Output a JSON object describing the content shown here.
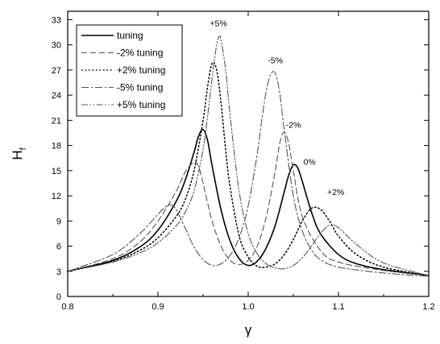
{
  "chart_data": {
    "type": "line",
    "xlabel": "γ",
    "ylabel": "H",
    "ylabel_sub": "f",
    "xlim": [
      0.8,
      1.2
    ],
    "ylim": [
      0,
      34
    ],
    "x_ticks": [
      0.8,
      0.9,
      1.0,
      1.1,
      1.2
    ],
    "x_tick_labels": [
      "0.8",
      "0.9",
      "1.0",
      "1.1",
      "1.2"
    ],
    "y_ticks": [
      0,
      3,
      6,
      9,
      12,
      15,
      18,
      21,
      24,
      27,
      30,
      33
    ],
    "y_tick_labels": [
      "0",
      "3",
      "6",
      "9",
      "12",
      "15",
      "18",
      "21",
      "24",
      "27",
      "30",
      "33"
    ],
    "legend_position": "top-left",
    "series": [
      {
        "name": "tuning",
        "style": "solid",
        "x": [
          0.8,
          0.85,
          0.88,
          0.9,
          0.92,
          0.93,
          0.94,
          0.945,
          0.95,
          0.955,
          0.96,
          0.97,
          0.98,
          0.99,
          1.0,
          1.01,
          1.02,
          1.03,
          1.04,
          1.045,
          1.05,
          1.055,
          1.06,
          1.07,
          1.08,
          1.1,
          1.12,
          1.15,
          1.2
        ],
        "y": [
          3.0,
          4.3,
          5.9,
          7.9,
          11.3,
          13.8,
          17.2,
          19.1,
          19.9,
          18.6,
          15.6,
          10.3,
          6.6,
          4.5,
          3.7,
          4.2,
          5.8,
          8.5,
          12.5,
          14.5,
          15.7,
          15.3,
          13.7,
          10.1,
          7.5,
          5.0,
          3.9,
          3.2,
          2.5
        ]
      },
      {
        "name": "-2% tuning",
        "style": "dashed",
        "x": [
          0.8,
          0.85,
          0.88,
          0.9,
          0.92,
          0.93,
          0.94,
          0.945,
          0.95,
          0.96,
          0.97,
          0.98,
          0.99,
          1.0,
          1.01,
          1.02,
          1.03,
          1.035,
          1.04,
          1.045,
          1.05,
          1.06,
          1.08,
          1.1,
          1.15,
          1.2
        ],
        "y": [
          3.0,
          4.5,
          6.5,
          9.0,
          12.5,
          14.8,
          16.0,
          15.5,
          13.5,
          9.0,
          6.0,
          4.3,
          3.8,
          4.3,
          6.0,
          9.5,
          15.0,
          18.3,
          19.6,
          18.2,
          15.0,
          9.5,
          5.5,
          4.1,
          3.1,
          2.5
        ]
      },
      {
        "name": "+2% tuning",
        "style": "dotted",
        "x": [
          0.8,
          0.85,
          0.88,
          0.9,
          0.92,
          0.93,
          0.94,
          0.95,
          0.955,
          0.96,
          0.965,
          0.97,
          0.975,
          0.98,
          0.99,
          1.0,
          1.01,
          1.02,
          1.03,
          1.04,
          1.05,
          1.06,
          1.07,
          1.08,
          1.09,
          1.1,
          1.12,
          1.15,
          1.2
        ],
        "y": [
          3.0,
          4.2,
          5.5,
          7.0,
          9.5,
          11.5,
          15.0,
          21.0,
          25.0,
          27.8,
          27.0,
          23.0,
          17.5,
          13.0,
          7.2,
          4.7,
          3.6,
          3.5,
          3.9,
          5.0,
          6.8,
          9.0,
          10.5,
          10.4,
          9.0,
          7.2,
          5.0,
          3.5,
          2.5
        ]
      },
      {
        "name": "-5% tuning",
        "style": "dash-dot",
        "x": [
          0.8,
          0.85,
          0.88,
          0.9,
          0.91,
          0.915,
          0.92,
          0.93,
          0.94,
          0.95,
          0.96,
          0.97,
          0.98,
          0.99,
          1.0,
          1.01,
          1.015,
          1.02,
          1.025,
          1.03,
          1.035,
          1.04,
          1.05,
          1.06,
          1.07,
          1.08,
          1.1,
          1.15,
          1.2
        ],
        "y": [
          3.0,
          5.0,
          7.5,
          9.8,
          10.8,
          10.9,
          10.4,
          8.2,
          5.9,
          4.4,
          3.7,
          3.9,
          4.9,
          7.0,
          10.8,
          17.0,
          21.0,
          24.5,
          26.5,
          26.6,
          24.2,
          19.8,
          12.0,
          7.8,
          5.6,
          4.4,
          3.5,
          2.8,
          2.4
        ]
      },
      {
        "name": "+5% tuning",
        "style": "dash-dot-dot",
        "x": [
          0.8,
          0.85,
          0.88,
          0.9,
          0.92,
          0.93,
          0.94,
          0.95,
          0.955,
          0.96,
          0.965,
          0.968,
          0.97,
          0.975,
          0.98,
          0.99,
          1.0,
          1.01,
          1.02,
          1.03,
          1.04,
          1.05,
          1.06,
          1.07,
          1.08,
          1.09,
          1.1,
          1.12,
          1.15,
          1.2
        ],
        "y": [
          3.0,
          4.1,
          5.2,
          6.4,
          8.4,
          10.0,
          12.6,
          17.5,
          21.5,
          26.0,
          30.0,
          31.0,
          30.5,
          27.0,
          21.5,
          12.5,
          7.5,
          5.1,
          3.9,
          3.4,
          3.3,
          3.7,
          4.6,
          6.0,
          7.5,
          8.5,
          8.2,
          6.2,
          4.0,
          2.5
        ]
      }
    ],
    "annotations": [
      {
        "text": "+5%",
        "x": 0.967,
        "y": 32.2
      },
      {
        "text": "-5%",
        "x": 1.03,
        "y": 27.8
      },
      {
        "text": "-2%",
        "x": 1.05,
        "y": 20.1
      },
      {
        "text": "0%",
        "x": 1.068,
        "y": 15.7
      },
      {
        "text": "+2%",
        "x": 1.097,
        "y": 12.1
      }
    ],
    "colors": {
      "tuning": "#000000",
      "-2% tuning": "#555555",
      "+2% tuning": "#000000",
      "-5% tuning": "#555555",
      "+5% tuning": "#555555"
    }
  }
}
